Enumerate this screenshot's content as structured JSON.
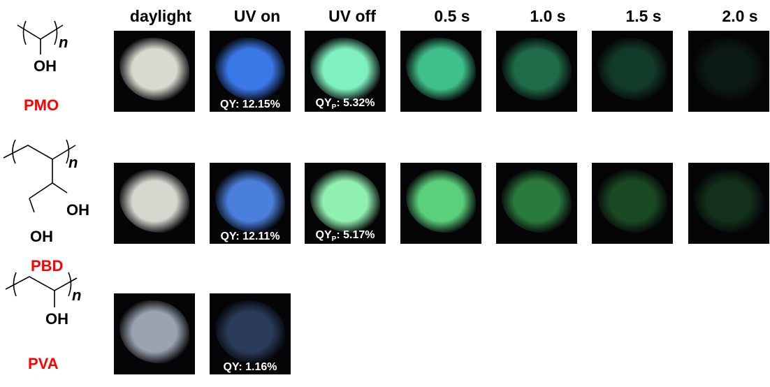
{
  "headers": [
    "daylight",
    "UV on",
    "UV off",
    "0.5 s",
    "1.0 s",
    "1.5 s",
    "2.0 s"
  ],
  "label_color": "#ff0000",
  "rows": [
    {
      "name": "PMO",
      "structure": "-(CH(OH))n-",
      "labels": {
        "uv_on": "QY: 12.15%",
        "uv_off_prefix": "QY",
        "uv_off_sub": "P",
        "uv_off_value": ": 5.32%"
      },
      "colors": [
        "#d8dad0",
        "#3a78e8",
        "#7ff0c0",
        "#3fc08a",
        "#1f6a48",
        "#123a28",
        "#0c1a16"
      ]
    },
    {
      "name": "PBD",
      "structure": "-(CH2-CH(CH(OH)CH2OH))n-",
      "labels": {
        "uv_on": "QY: 12.11%",
        "uv_off_prefix": "QY",
        "uv_off_sub": "P",
        "uv_off_value": ": 5.17%"
      },
      "colors": [
        "#d6d8d0",
        "#4a80dc",
        "#90f0b0",
        "#5ad07a",
        "#2a7a3c",
        "#1a4a24",
        "#12301a"
      ]
    },
    {
      "name": "PVA",
      "structure": "-(CH2-CH(OH))n-",
      "labels": {
        "uv_on": "QY: 1.16%"
      },
      "colors": [
        "#9aa4b0",
        "#2a3c5a"
      ]
    }
  ],
  "structure_text": {
    "oh": "OH",
    "n": "n"
  }
}
